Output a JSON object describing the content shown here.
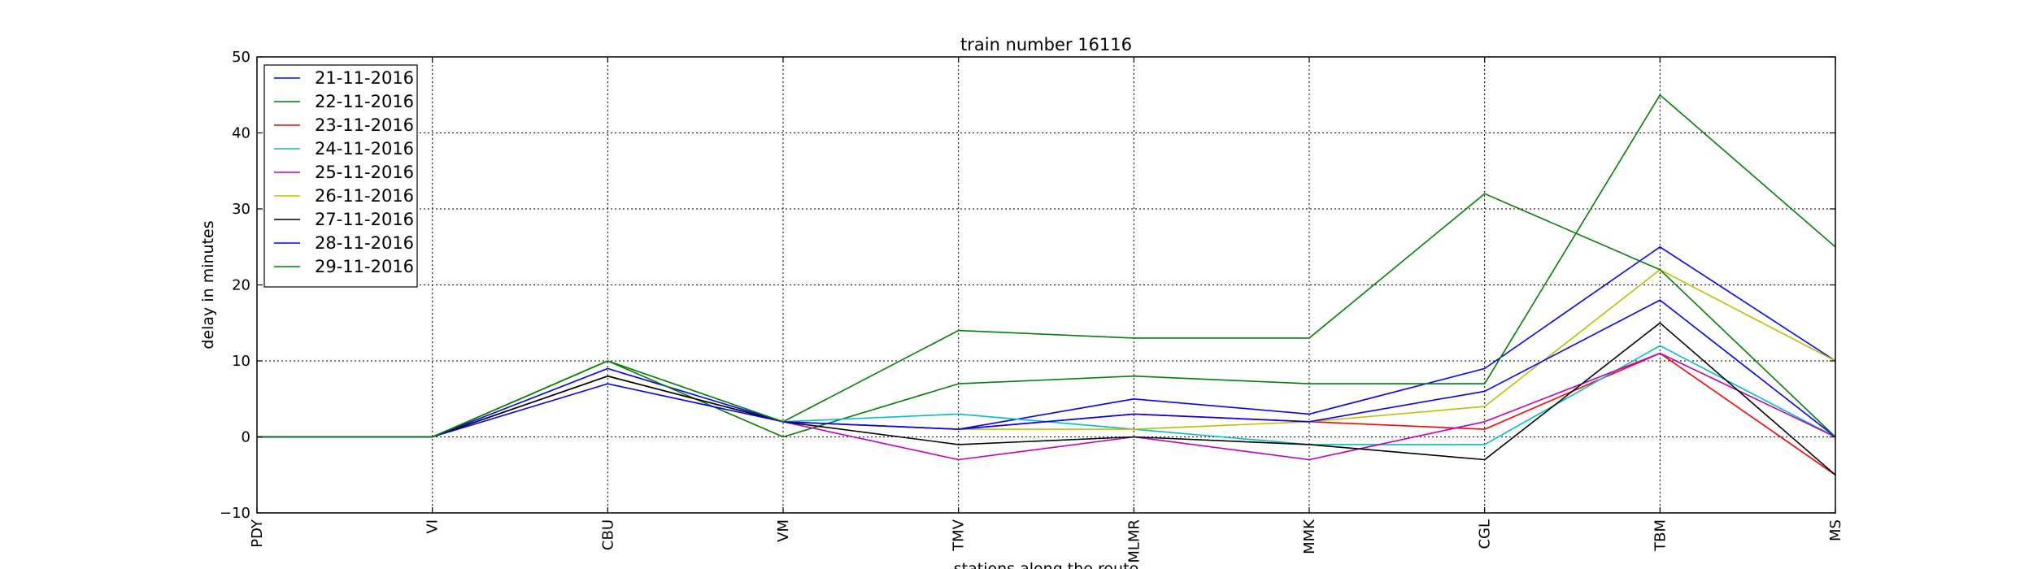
{
  "chart_data": {
    "type": "line",
    "title": "train number 16116",
    "xlabel": "stations along the route",
    "ylabel": "delay in minutes",
    "categories": [
      "PDY",
      "VI",
      "CBU",
      "VM",
      "TMV",
      "MLMR",
      "MMK",
      "CGL",
      "TBM",
      "MS"
    ],
    "ylim": [
      -10,
      50
    ],
    "yticks": [
      -10,
      0,
      10,
      20,
      30,
      40,
      50
    ],
    "grid": true,
    "legend_position": "top-left",
    "series": [
      {
        "name": "21-11-2016",
        "color": "#0000ff",
        "values": [
          0,
          0,
          9,
          2,
          1,
          5,
          3,
          9,
          25,
          10
        ]
      },
      {
        "name": "22-11-2016",
        "color": "#008000",
        "values": [
          0,
          0,
          10,
          0,
          7,
          8,
          7,
          7,
          45,
          25
        ]
      },
      {
        "name": "23-11-2016",
        "color": "#ff0000",
        "values": [
          0,
          0,
          8,
          2,
          1,
          3,
          2,
          1,
          11,
          -5
        ]
      },
      {
        "name": "24-11-2016",
        "color": "#00bfbf",
        "values": [
          0,
          0,
          8,
          2,
          3,
          1,
          -1,
          -1,
          12,
          0
        ]
      },
      {
        "name": "25-11-2016",
        "color": "#bf00bf",
        "values": [
          0,
          0,
          8,
          2,
          -3,
          0,
          -3,
          2,
          11,
          0
        ]
      },
      {
        "name": "26-11-2016",
        "color": "#bfbf00",
        "values": [
          0,
          0,
          8,
          2,
          1,
          1,
          2,
          4,
          22,
          10
        ]
      },
      {
        "name": "27-11-2016",
        "color": "#000000",
        "values": [
          0,
          0,
          8,
          2,
          -1,
          0,
          -1,
          -3,
          15,
          -5
        ]
      },
      {
        "name": "28-11-2016",
        "color": "#0000ff",
        "values": [
          0,
          0,
          7,
          2,
          1,
          3,
          2,
          6,
          18,
          0
        ]
      },
      {
        "name": "29-11-2016",
        "color": "#008000",
        "values": [
          0,
          0,
          10,
          2,
          14,
          13,
          13,
          32,
          22,
          0
        ]
      }
    ]
  }
}
